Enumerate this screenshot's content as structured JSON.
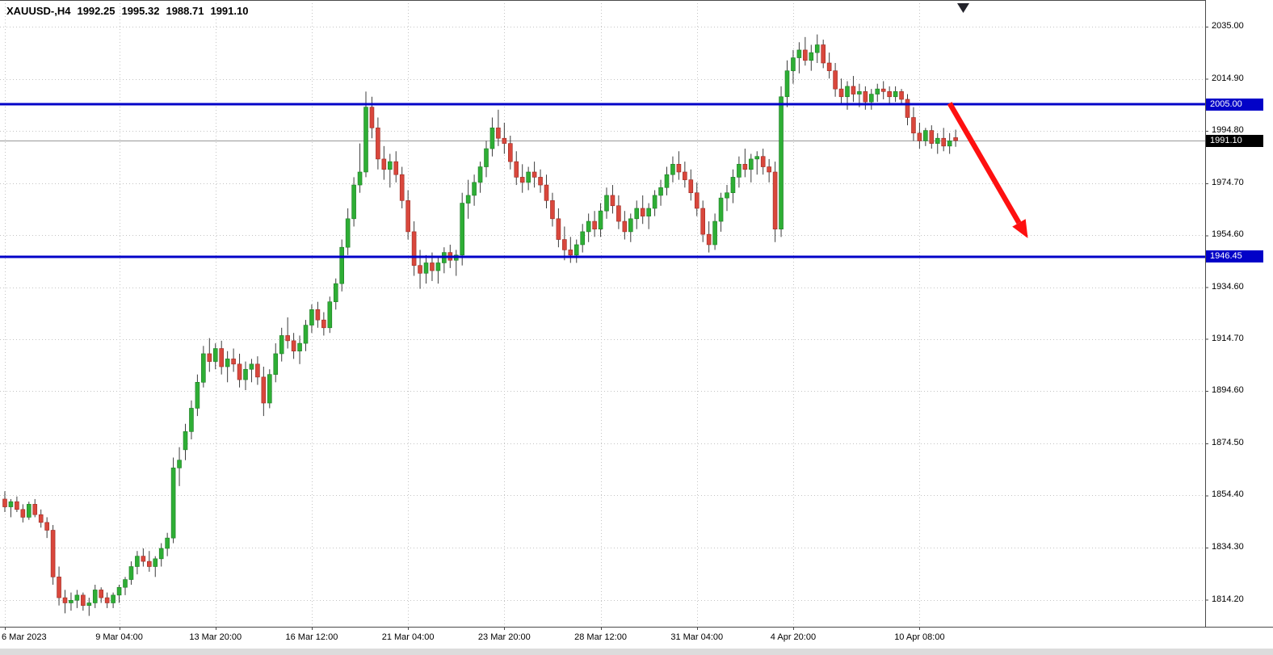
{
  "header": {
    "symbol_period": "XAUUSD-,H4",
    "open": "1992.25",
    "high": "1995.32",
    "low": "1988.71",
    "close": "1991.10"
  },
  "chart_data": {
    "type": "candlestick",
    "title": "XAUUSD- H4 candlestick chart",
    "symbol": "XAUUSD-",
    "timeframe": "H4",
    "colors": {
      "up": "#2eae35",
      "up_border": "#1d7c24",
      "down": "#d9473c",
      "down_border": "#9c2a22",
      "wick": "#3c3c3c",
      "grid": "#c4c4c4",
      "hline": "#0202c8",
      "arrow": "#fe1010",
      "last_price_line": "#999999",
      "tag_line_bg": "#0202c8",
      "tag_last_bg": "#000000"
    },
    "y_axis": {
      "labels": [
        "2035.00",
        "2014.90",
        "1994.80",
        "1974.70",
        "1954.60",
        "1934.60",
        "1914.70",
        "1894.60",
        "1874.50",
        "1854.40",
        "1834.30",
        "1814.20"
      ]
    },
    "x_axis": {
      "labels": [
        {
          "text": "6 Mar 2023",
          "bar": 0
        },
        {
          "text": "9 Mar 04:00",
          "bar": 19
        },
        {
          "text": "13 Mar 20:00",
          "bar": 35
        },
        {
          "text": "16 Mar 12:00",
          "bar": 51
        },
        {
          "text": "21 Mar 04:00",
          "bar": 67
        },
        {
          "text": "23 Mar 20:00",
          "bar": 83
        },
        {
          "text": "28 Mar 12:00",
          "bar": 99
        },
        {
          "text": "31 Mar 04:00",
          "bar": 115
        },
        {
          "text": "4 Apr 20:00",
          "bar": 131
        },
        {
          "text": "10 Apr 08:00",
          "bar": 152
        }
      ]
    },
    "price_lines": [
      {
        "price": 2005.0,
        "label": "2005.00"
      },
      {
        "price": 1946.45,
        "label": "1946.45"
      }
    ],
    "last_price": {
      "value": 1991.1,
      "label": "1991.10"
    },
    "arrow": {
      "from_bar": 157,
      "from_price": 2005.5,
      "to_bar": 170,
      "to_price": 1953.5
    },
    "candles": [
      [
        1853,
        1856,
        1848,
        1850
      ],
      [
        1850,
        1853,
        1846,
        1852
      ],
      [
        1852,
        1854,
        1848,
        1849
      ],
      [
        1849,
        1851,
        1844,
        1846
      ],
      [
        1846,
        1852,
        1845,
        1851
      ],
      [
        1851,
        1853,
        1846,
        1847
      ],
      [
        1847,
        1849,
        1842,
        1844
      ],
      [
        1844,
        1846,
        1838,
        1841
      ],
      [
        1841,
        1843,
        1820,
        1823
      ],
      [
        1823,
        1827,
        1812,
        1815
      ],
      [
        1815,
        1818,
        1809,
        1813
      ],
      [
        1813,
        1817,
        1810,
        1814
      ],
      [
        1814,
        1818,
        1811,
        1816
      ],
      [
        1816,
        1817,
        1810,
        1812
      ],
      [
        1812,
        1815,
        1808,
        1813
      ],
      [
        1813,
        1820,
        1811,
        1818
      ],
      [
        1818,
        1819,
        1813,
        1815
      ],
      [
        1815,
        1817,
        1811,
        1813
      ],
      [
        1813,
        1817,
        1811,
        1816
      ],
      [
        1816,
        1820,
        1813,
        1819
      ],
      [
        1819,
        1823,
        1816,
        1822
      ],
      [
        1822,
        1829,
        1820,
        1827
      ],
      [
        1827,
        1833,
        1824,
        1831
      ],
      [
        1831,
        1834,
        1827,
        1829
      ],
      [
        1829,
        1833,
        1825,
        1827
      ],
      [
        1827,
        1831,
        1823,
        1830
      ],
      [
        1830,
        1836,
        1827,
        1834
      ],
      [
        1834,
        1840,
        1831,
        1838
      ],
      [
        1838,
        1869,
        1836,
        1865
      ],
      [
        1865,
        1873,
        1858,
        1868
      ],
      [
        1872,
        1882,
        1868,
        1879
      ],
      [
        1879,
        1891,
        1876,
        1888
      ],
      [
        1888,
        1901,
        1885,
        1898
      ],
      [
        1898,
        1912,
        1896,
        1909
      ],
      [
        1909,
        1915,
        1902,
        1906
      ],
      [
        1906,
        1913,
        1903,
        1911
      ],
      [
        1911,
        1914,
        1901,
        1904
      ],
      [
        1904,
        1910,
        1898,
        1907
      ],
      [
        1907,
        1911,
        1902,
        1905
      ],
      [
        1905,
        1909,
        1896,
        1899
      ],
      [
        1899,
        1906,
        1895,
        1903
      ],
      [
        1903,
        1907,
        1898,
        1905
      ],
      [
        1905,
        1908,
        1897,
        1900
      ],
      [
        1900,
        1904,
        1885,
        1890
      ],
      [
        1890,
        1903,
        1888,
        1901
      ],
      [
        1901,
        1913,
        1898,
        1909
      ],
      [
        1909,
        1919,
        1906,
        1916
      ],
      [
        1916,
        1923,
        1911,
        1914
      ],
      [
        1914,
        1917,
        1907,
        1910
      ],
      [
        1910,
        1916,
        1905,
        1913
      ],
      [
        1913,
        1922,
        1910,
        1920
      ],
      [
        1920,
        1928,
        1917,
        1926
      ],
      [
        1926,
        1929,
        1919,
        1922
      ],
      [
        1922,
        1925,
        1916,
        1919
      ],
      [
        1919,
        1931,
        1917,
        1929
      ],
      [
        1929,
        1938,
        1926,
        1936
      ],
      [
        1936,
        1953,
        1933,
        1950
      ],
      [
        1950,
        1965,
        1947,
        1961
      ],
      [
        1961,
        1977,
        1958,
        1974
      ],
      [
        1974,
        1990,
        1971,
        1979
      ],
      [
        1979,
        2010,
        1977,
        2004
      ],
      [
        2004,
        2008,
        1992,
        1996
      ],
      [
        1996,
        2000,
        1980,
        1984
      ],
      [
        1984,
        1989,
        1976,
        1980
      ],
      [
        1980,
        1986,
        1973,
        1983
      ],
      [
        1983,
        1987,
        1975,
        1978
      ],
      [
        1978,
        1981,
        1965,
        1968
      ],
      [
        1968,
        1972,
        1953,
        1956
      ],
      [
        1956,
        1960,
        1939,
        1943
      ],
      [
        1943,
        1949,
        1934,
        1940
      ],
      [
        1940,
        1947,
        1936,
        1944
      ],
      [
        1944,
        1948,
        1937,
        1941
      ],
      [
        1941,
        1946,
        1936,
        1944
      ],
      [
        1944,
        1950,
        1940,
        1948
      ],
      [
        1948,
        1951,
        1942,
        1945
      ],
      [
        1945,
        1949,
        1939,
        1947
      ],
      [
        1947,
        1971,
        1943,
        1967
      ],
      [
        1967,
        1976,
        1961,
        1970
      ],
      [
        1970,
        1978,
        1966,
        1975
      ],
      [
        1975,
        1983,
        1971,
        1981
      ],
      [
        1981,
        1991,
        1977,
        1988
      ],
      [
        1988,
        2000,
        1985,
        1996
      ],
      [
        1996,
        2003,
        1989,
        1992
      ],
      [
        1992,
        1998,
        1986,
        1990
      ],
      [
        1990,
        1993,
        1980,
        1983
      ],
      [
        1983,
        1987,
        1974,
        1977
      ],
      [
        1977,
        1982,
        1971,
        1975
      ],
      [
        1975,
        1981,
        1972,
        1979
      ],
      [
        1979,
        1983,
        1973,
        1977
      ],
      [
        1977,
        1980,
        1971,
        1974
      ],
      [
        1974,
        1978,
        1965,
        1968
      ],
      [
        1968,
        1971,
        1958,
        1961
      ],
      [
        1961,
        1965,
        1950,
        1953
      ],
      [
        1953,
        1958,
        1945,
        1949
      ],
      [
        1949,
        1954,
        1944,
        1947
      ],
      [
        1947,
        1953,
        1944,
        1951
      ],
      [
        1951,
        1959,
        1948,
        1956
      ],
      [
        1956,
        1963,
        1952,
        1960
      ],
      [
        1960,
        1964,
        1954,
        1957
      ],
      [
        1957,
        1967,
        1954,
        1964
      ],
      [
        1964,
        1973,
        1961,
        1970
      ],
      [
        1970,
        1974,
        1963,
        1966
      ],
      [
        1966,
        1970,
        1957,
        1960
      ],
      [
        1960,
        1964,
        1953,
        1956
      ],
      [
        1956,
        1963,
        1952,
        1961
      ],
      [
        1961,
        1968,
        1957,
        1965
      ],
      [
        1965,
        1970,
        1959,
        1962
      ],
      [
        1962,
        1967,
        1957,
        1965
      ],
      [
        1965,
        1972,
        1962,
        1970
      ],
      [
        1970,
        1976,
        1966,
        1973
      ],
      [
        1973,
        1981,
        1970,
        1978
      ],
      [
        1978,
        1985,
        1975,
        1982
      ],
      [
        1982,
        1987,
        1976,
        1979
      ],
      [
        1979,
        1983,
        1973,
        1976
      ],
      [
        1976,
        1980,
        1968,
        1971
      ],
      [
        1971,
        1975,
        1962,
        1965
      ],
      [
        1965,
        1968,
        1952,
        1955
      ],
      [
        1955,
        1960,
        1948,
        1951
      ],
      [
        1951,
        1963,
        1949,
        1960
      ],
      [
        1960,
        1971,
        1956,
        1969
      ],
      [
        1969,
        1974,
        1964,
        1971
      ],
      [
        1971,
        1980,
        1967,
        1977
      ],
      [
        1977,
        1985,
        1973,
        1982
      ],
      [
        1982,
        1988,
        1977,
        1980
      ],
      [
        1980,
        1986,
        1975,
        1984
      ],
      [
        1984,
        1987,
        1978,
        1985
      ],
      [
        1985,
        1988,
        1978,
        1981
      ],
      [
        1981,
        1984,
        1975,
        1979
      ],
      [
        1979,
        1983,
        1952,
        1957
      ],
      [
        1957,
        2012,
        1954,
        2008
      ],
      [
        2008,
        2022,
        2004,
        2018
      ],
      [
        2018,
        2026,
        2013,
        2023
      ],
      [
        2023,
        2029,
        2017,
        2026
      ],
      [
        2026,
        2031,
        2020,
        2022
      ],
      [
        2022,
        2028,
        2018,
        2025
      ],
      [
        2025,
        2032,
        2021,
        2028
      ],
      [
        2028,
        2030,
        2019,
        2021
      ],
      [
        2021,
        2025,
        2015,
        2018
      ],
      [
        2018,
        2021,
        2008,
        2011
      ],
      [
        2011,
        2015,
        2005,
        2008
      ],
      [
        2008,
        2014,
        2003,
        2012
      ],
      [
        2012,
        2016,
        2006,
        2009
      ],
      [
        2009,
        2013,
        2004,
        2010
      ],
      [
        2010,
        2012,
        2003,
        2006
      ],
      [
        2006,
        2011,
        2003,
        2009
      ],
      [
        2009,
        2013,
        2006,
        2011
      ],
      [
        2011,
        2014,
        2007,
        2010
      ],
      [
        2010,
        2012,
        2005,
        2008
      ],
      [
        2008,
        2012,
        2006,
        2010
      ],
      [
        2010,
        2011,
        2005,
        2007
      ],
      [
        2007,
        2009,
        1997,
        2000
      ],
      [
        2000,
        2004,
        1991,
        1994
      ],
      [
        1994,
        1998,
        1988,
        1991
      ],
      [
        1991,
        1996,
        1989,
        1995
      ],
      [
        1995,
        1997,
        1988,
        1990
      ],
      [
        1990,
        1994,
        1986,
        1992
      ],
      [
        1992,
        1996,
        1987,
        1989
      ],
      [
        1989,
        1994,
        1986,
        1991
      ],
      [
        1992.25,
        1995.32,
        1988.71,
        1991.1
      ]
    ]
  }
}
